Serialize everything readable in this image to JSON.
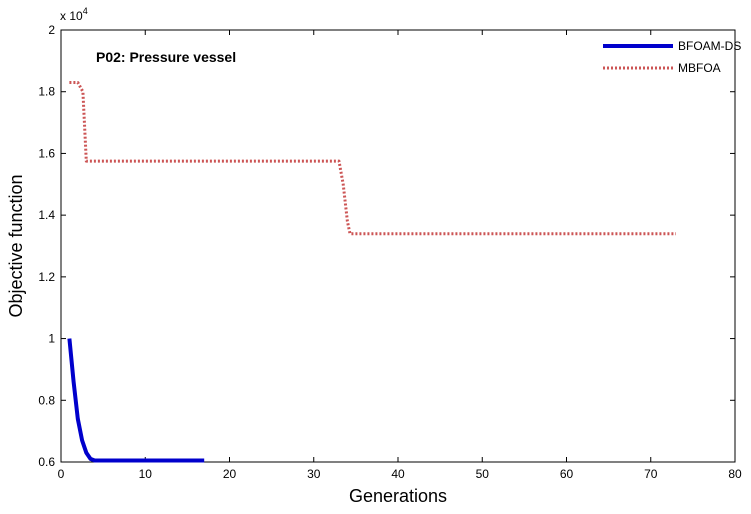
{
  "chart_data": {
    "type": "line",
    "annotation": "P02: Pressure vessel",
    "xlabel": "Generations",
    "ylabel": "Objective function",
    "xlim": [
      0,
      80
    ],
    "ylim": [
      0.6,
      2.0
    ],
    "y_multiplier": "x 10",
    "y_exponent": "4",
    "xticks": [
      "0",
      "10",
      "20",
      "30",
      "40",
      "50",
      "60",
      "70",
      "80"
    ],
    "yticks": [
      "0.6",
      "0.8",
      "1",
      "1.2",
      "1.4",
      "1.6",
      "1.8",
      "2"
    ],
    "grid": false,
    "legend_position": "top-right",
    "series": [
      {
        "name": "BFOAM-DS",
        "color": "#0000cc",
        "style": "solid",
        "x": [
          1,
          1.5,
          2,
          2.5,
          3,
          3.5,
          4,
          5,
          6,
          8,
          10,
          12,
          14,
          17
        ],
        "y": [
          1.0,
          0.86,
          0.74,
          0.67,
          0.63,
          0.61,
          0.605,
          0.605,
          0.605,
          0.605,
          0.605,
          0.605,
          0.605,
          0.605
        ]
      },
      {
        "name": "MBFOA",
        "color": "#cc5555",
        "style": "dotted",
        "x": [
          1,
          2,
          2.6,
          3,
          10,
          20,
          30,
          33,
          33.5,
          34,
          34.3,
          40,
          50,
          60,
          70,
          73
        ],
        "y": [
          1.83,
          1.83,
          1.8,
          1.575,
          1.575,
          1.575,
          1.575,
          1.575,
          1.5,
          1.38,
          1.34,
          1.34,
          1.34,
          1.34,
          1.34,
          1.34
        ]
      }
    ]
  }
}
